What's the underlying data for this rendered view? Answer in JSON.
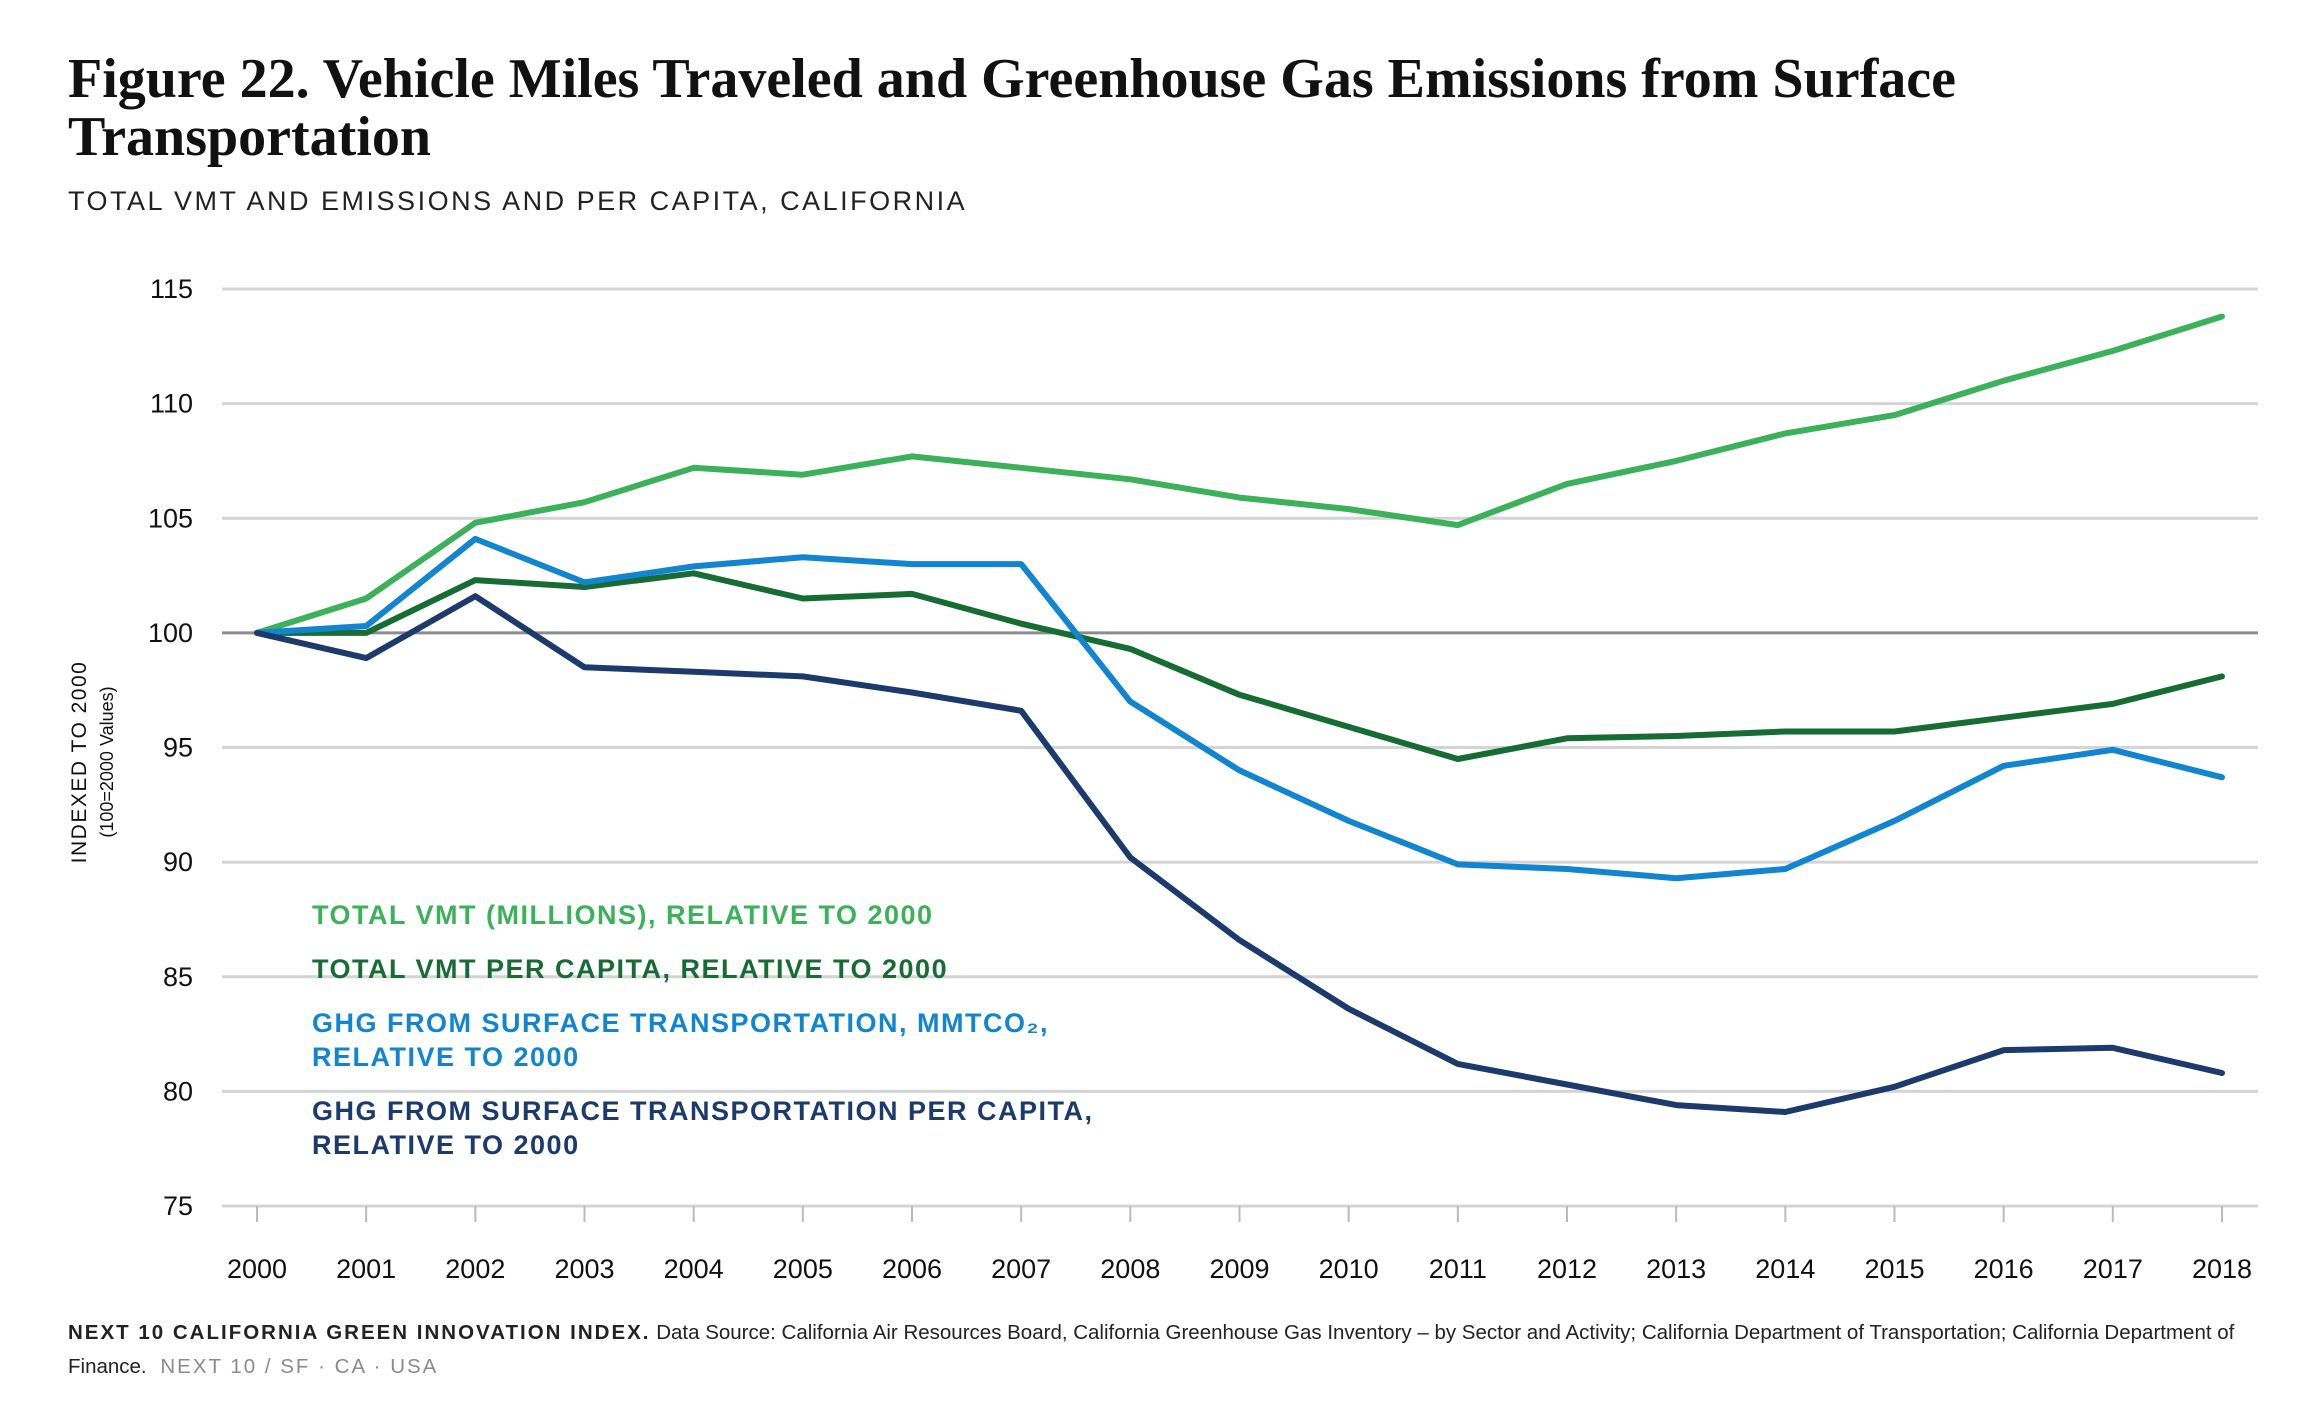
{
  "header": {
    "title": "Figure 22. Vehicle Miles Traveled and Greenhouse Gas Emissions from Surface Transportation",
    "subtitle": "TOTAL VMT AND EMISSIONS AND PER CAPITA, CALIFORNIA"
  },
  "chart_data": {
    "type": "line",
    "title": "Figure 22. Vehicle Miles Traveled and Greenhouse Gas Emissions from Surface Transportation",
    "subtitle": "TOTAL VMT AND EMISSIONS AND PER CAPITA, CALIFORNIA",
    "ylabel": "INDEXED TO 2000",
    "ylabel_sub": "(100=2000 Values)",
    "x": [
      2000,
      2001,
      2002,
      2003,
      2004,
      2005,
      2006,
      2007,
      2008,
      2009,
      2010,
      2011,
      2012,
      2013,
      2014,
      2015,
      2016,
      2017,
      2018
    ],
    "ylim": [
      75,
      115
    ],
    "yticks": [
      75,
      80,
      85,
      90,
      95,
      100,
      105,
      110,
      115
    ],
    "grid": true,
    "reference_line": 100,
    "legend_position": "bottom-left",
    "series": [
      {
        "name": "TOTAL VMT (MILLIONS), RELATIVE TO 2000",
        "legend_lines": [
          "TOTAL VMT (MILLIONS), RELATIVE TO 2000"
        ],
        "color": "#3BB15A",
        "values": [
          100,
          101.5,
          104.8,
          105.7,
          107.2,
          106.9,
          107.7,
          107.2,
          106.7,
          105.9,
          105.4,
          104.7,
          106.5,
          107.5,
          108.7,
          109.5,
          111.0,
          112.3,
          113.8
        ]
      },
      {
        "name": "TOTAL VMT PER CAPITA, RELATIVE TO 2000",
        "legend_lines": [
          "TOTAL VMT PER CAPITA, RELATIVE TO 2000"
        ],
        "color": "#176C34",
        "values": [
          100,
          100.0,
          102.3,
          102.0,
          102.6,
          101.5,
          101.7,
          100.4,
          99.3,
          97.3,
          95.9,
          94.5,
          95.4,
          95.5,
          95.7,
          95.7,
          96.3,
          96.9,
          98.1
        ]
      },
      {
        "name": "GHG FROM SURFACE TRANSPORTATION, MMTCO₂, RELATIVE TO 2000",
        "legend_lines": [
          "GHG FROM SURFACE TRANSPORTATION, MMTCO₂,",
          "RELATIVE TO 2000"
        ],
        "color": "#1185CF",
        "values": [
          100,
          100.3,
          104.1,
          102.2,
          102.9,
          103.3,
          103.0,
          103.0,
          97.0,
          94.0,
          91.8,
          89.9,
          89.7,
          89.3,
          89.7,
          91.8,
          94.2,
          94.9,
          93.7
        ]
      },
      {
        "name": "GHG FROM SURFACE TRANSPORTATION PER CAPITA, RELATIVE TO 2000",
        "legend_lines": [
          "GHG FROM SURFACE TRANSPORTATION PER CAPITA,",
          "RELATIVE TO 2000"
        ],
        "color": "#1C3A6B",
        "values": [
          100,
          98.9,
          101.6,
          98.5,
          98.3,
          98.1,
          97.4,
          96.6,
          90.2,
          86.6,
          83.6,
          81.2,
          80.3,
          79.4,
          79.1,
          80.2,
          81.8,
          81.9,
          80.8
        ]
      }
    ]
  },
  "footer": {
    "brand": "NEXT 10 CALIFORNIA GREEN INNOVATION INDEX.",
    "source": "Data Source: California Air Resources Board, California Greenhouse Gas Inventory – by Sector and Activity; California Department of Transportation; California Department of Finance.",
    "tag": "NEXT 10 / SF · CA · USA"
  }
}
